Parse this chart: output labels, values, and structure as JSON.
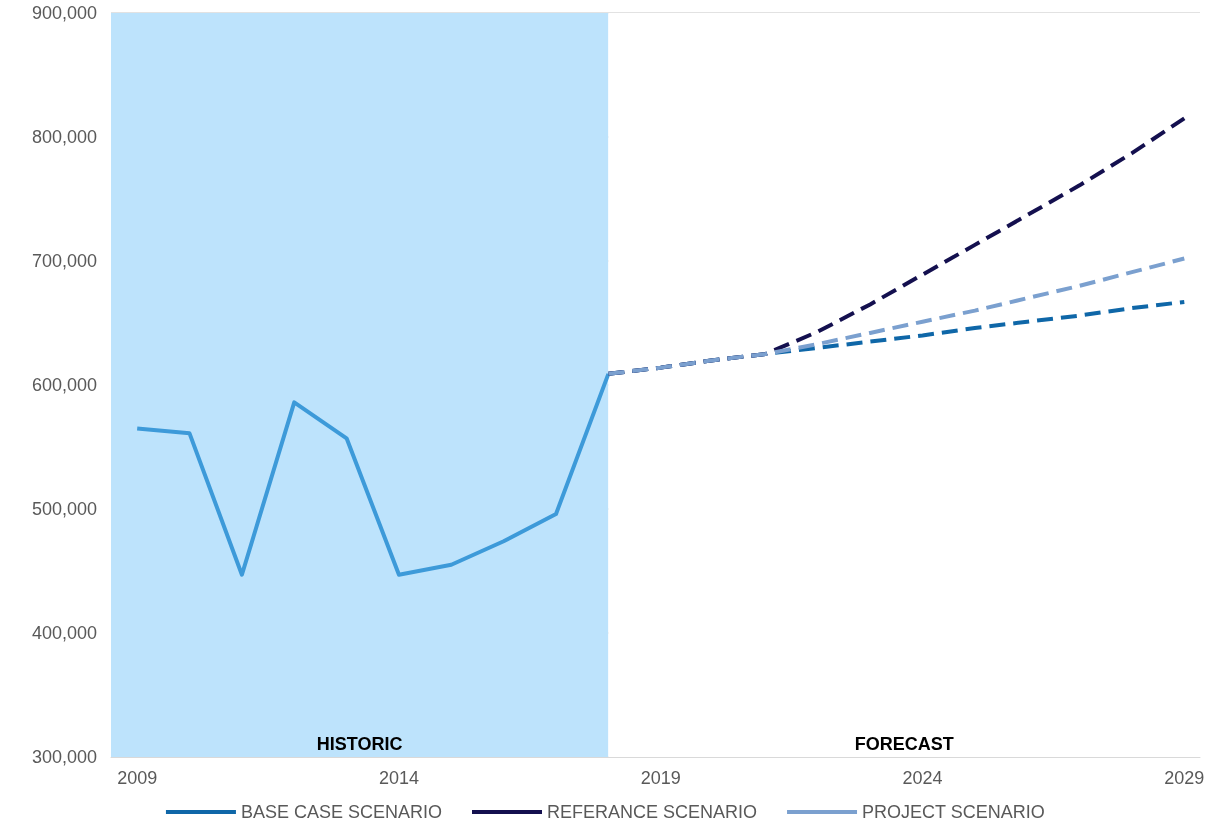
{
  "chart_data": {
    "type": "line",
    "xlim": [
      2008.5,
      2029.3
    ],
    "xticks": [
      2009,
      2014,
      2019,
      2024,
      2029
    ],
    "ylim": [
      300000,
      900000
    ],
    "yticks": [
      {
        "value": 300000,
        "label": "300,000"
      },
      {
        "value": 400000,
        "label": "400,000"
      },
      {
        "value": 500000,
        "label": "500,000"
      },
      {
        "value": 600000,
        "label": "600,000"
      },
      {
        "value": 700000,
        "label": "700,000"
      },
      {
        "value": 800000,
        "label": "800,000"
      },
      {
        "value": 900000,
        "label": "900,000"
      }
    ],
    "grid": "y",
    "legend": "bottom",
    "marker": "none",
    "series": [
      {
        "color": "#3d9ad9",
        "line_style": "solid",
        "x": [
          2009,
          2010,
          2011,
          2012,
          2013,
          2014,
          2015,
          2016,
          2017,
          2018
        ],
        "values": [
          565000,
          561000,
          447000,
          586000,
          557000,
          447000,
          455000,
          474000,
          496000,
          609000
        ]
      },
      {
        "name": "BASE CASE SCENARIO",
        "color": "#0f67a8",
        "line_style": "dashed",
        "x": [
          2018,
          2019,
          2020,
          2021,
          2022,
          2023,
          2024,
          2025,
          2026,
          2027,
          2028,
          2029
        ],
        "values": [
          609000,
          614000,
          620000,
          625000,
          630000,
          635000,
          640000,
          646000,
          651000,
          656000,
          662000,
          667000
        ]
      },
      {
        "name": "REFERANCE SCENARIO",
        "color": "#14104f",
        "line_style": "dashed",
        "x": [
          2018,
          2019,
          2020,
          2021,
          2022,
          2023,
          2024,
          2025,
          2026,
          2027,
          2028,
          2029
        ],
        "values": [
          609000,
          614000,
          620000,
          625000,
          643000,
          665000,
          689000,
          713000,
          737000,
          761000,
          787000,
          815000
        ]
      },
      {
        "name": "PROJECT SCENARIO",
        "color": "#7ba0cf",
        "line_style": "dashed",
        "x": [
          2018,
          2019,
          2020,
          2021,
          2022,
          2023,
          2024,
          2025,
          2026,
          2027,
          2028,
          2029
        ],
        "values": [
          609000,
          614000,
          620000,
          625000,
          633000,
          642000,
          651000,
          660000,
          670000,
          680000,
          691000,
          702000
        ]
      }
    ],
    "bands": [
      {
        "axis": "x",
        "from": 2008.5,
        "to": 2018,
        "label": "HISTORIC",
        "color": "#bde3fc"
      },
      {
        "axis": "x",
        "from": 2018,
        "to": 2029.3,
        "label": "FORECAST",
        "color": "#ffffff"
      }
    ]
  }
}
